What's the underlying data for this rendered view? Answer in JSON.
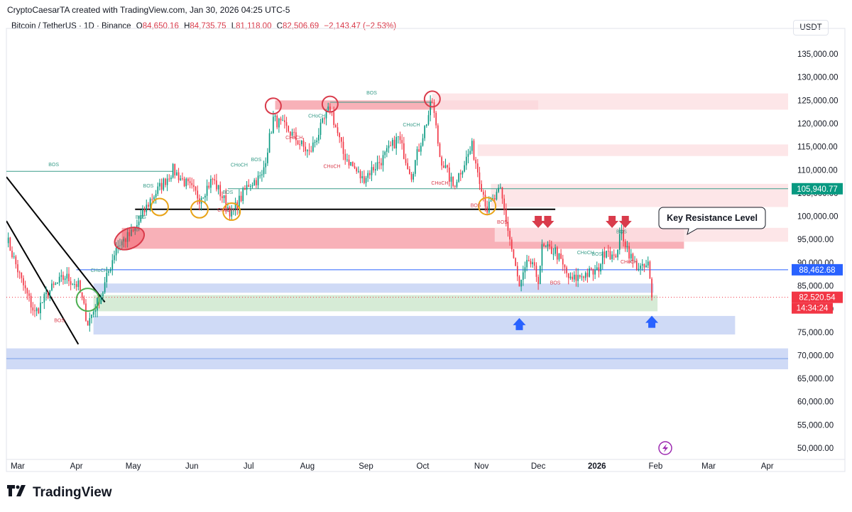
{
  "header": {
    "published": "CryptoCaesarTA created with TradingView.com, Jan 30, 2026 04:25 UTC-5",
    "symbol": "Bitcoin / TetherUS · 1D · Binance",
    "o_label": "O",
    "o_value": "84,650.16",
    "h_label": "H",
    "h_value": "84,735.75",
    "l_label": "L",
    "l_value": "81,118.00",
    "c_label": "C",
    "c_value": "82,506.69",
    "change": "−2,143.47 (−2.53%)"
  },
  "currency_button": "USDT",
  "brand": "TradingView",
  "chart_data": {
    "type": "candlestick",
    "symbol": "BTC/USDT",
    "interval": "1D",
    "ylim": [
      48000,
      139000
    ],
    "y_ticks": [
      50000,
      55000,
      60000,
      65000,
      70000,
      75000,
      80000,
      85000,
      90000,
      95000,
      100000,
      105000,
      110000,
      115000,
      120000,
      125000,
      130000,
      135000
    ],
    "y_tick_labels": [
      "50,000.00",
      "55,000.00",
      "60,000.00",
      "65,000.00",
      "70,000.00",
      "75,000.00",
      "80,000.00",
      "85,000.00",
      "90,000.00",
      "95,000.00",
      "100,000.00",
      "105,000.00",
      "110,000.00",
      "115,000.00",
      "120,000.00",
      "125,000.00",
      "130,000.00",
      "135,000.00"
    ],
    "x_start": "2025-02-23",
    "x_end": "2026-04-12",
    "x_ticks": [
      {
        "label": "Mar",
        "date": "2025-03-01"
      },
      {
        "label": "Apr",
        "date": "2025-04-01"
      },
      {
        "label": "May",
        "date": "2025-05-01"
      },
      {
        "label": "Jun",
        "date": "2025-06-01"
      },
      {
        "label": "Jul",
        "date": "2025-07-01"
      },
      {
        "label": "Aug",
        "date": "2025-08-01"
      },
      {
        "label": "Sep",
        "date": "2025-09-01"
      },
      {
        "label": "Oct",
        "date": "2025-10-01"
      },
      {
        "label": "Nov",
        "date": "2025-11-01"
      },
      {
        "label": "Dec",
        "date": "2025-12-01"
      },
      {
        "label": "2026",
        "date": "2026-01-01",
        "bold": true
      },
      {
        "label": "Feb",
        "date": "2026-02-01"
      },
      {
        "label": "Mar",
        "date": "2026-03-01"
      },
      {
        "label": "Apr",
        "date": "2026-04-01"
      }
    ],
    "price_anchors": [
      [
        "2025-02-23",
        95500
      ],
      [
        "2025-03-03",
        86000
      ],
      [
        "2025-03-10",
        79000
      ],
      [
        "2025-03-18",
        84000
      ],
      [
        "2025-03-26",
        87000
      ],
      [
        "2025-04-02",
        85000
      ],
      [
        "2025-04-07",
        77000
      ],
      [
        "2025-04-15",
        84000
      ],
      [
        "2025-04-22",
        93500
      ],
      [
        "2025-05-01",
        96500
      ],
      [
        "2025-05-10",
        103500
      ],
      [
        "2025-05-22",
        110000
      ],
      [
        "2025-06-05",
        104000
      ],
      [
        "2025-06-12",
        108000
      ],
      [
        "2025-06-22",
        100500
      ],
      [
        "2025-07-01",
        107000
      ],
      [
        "2025-07-08",
        108500
      ],
      [
        "2025-07-14",
        121000
      ],
      [
        "2025-07-22",
        118500
      ],
      [
        "2025-08-02",
        113500
      ],
      [
        "2025-08-13",
        123500
      ],
      [
        "2025-08-20",
        113500
      ],
      [
        "2025-08-30",
        108000
      ],
      [
        "2025-09-10",
        112500
      ],
      [
        "2025-09-18",
        117000
      ],
      [
        "2025-09-25",
        109000
      ],
      [
        "2025-10-06",
        124800
      ],
      [
        "2025-10-10",
        113000
      ],
      [
        "2025-10-17",
        106500
      ],
      [
        "2025-10-27",
        115000
      ],
      [
        "2025-11-04",
        101500
      ],
      [
        "2025-11-11",
        105500
      ],
      [
        "2025-11-21",
        84500
      ],
      [
        "2025-11-26",
        90500
      ],
      [
        "2025-12-01",
        86500
      ],
      [
        "2025-12-03",
        93000
      ],
      [
        "2025-12-10",
        92500
      ],
      [
        "2025-12-18",
        86000
      ],
      [
        "2025-12-25",
        87500
      ],
      [
        "2026-01-01",
        88000
      ],
      [
        "2026-01-06",
        93500
      ],
      [
        "2026-01-10",
        90500
      ],
      [
        "2026-01-14",
        96500
      ],
      [
        "2026-01-20",
        90000
      ],
      [
        "2026-01-25",
        88500
      ],
      [
        "2026-01-28",
        89500
      ],
      [
        "2026-01-30",
        82506
      ]
    ],
    "zones": [
      {
        "name": "top-supply-zone",
        "from": "2025-07-15",
        "to": "2025-12-01",
        "low": 123000,
        "high": 125000,
        "color": "#f7a3ab"
      },
      {
        "name": "top-supply-extension",
        "from": "2025-10-06",
        "to": "2026-04-12",
        "low": 123000,
        "high": 126500,
        "color": "#fde2e4"
      },
      {
        "name": "supply-zone-115k",
        "from": "2025-10-30",
        "to": "2026-04-12",
        "low": 113000,
        "high": 115500,
        "color": "#fde2e4"
      },
      {
        "name": "supply-zone-105k",
        "from": "2025-11-06",
        "to": "2026-04-12",
        "low": 102000,
        "high": 107000,
        "color": "#fde2e4"
      },
      {
        "name": "key-resistance-zone",
        "from": "2025-04-25",
        "to": "2026-02-16",
        "low": 93000,
        "high": 97500,
        "color": "#f7a3ab"
      },
      {
        "name": "key-resistance-extension",
        "from": "2025-11-08",
        "to": "2026-04-12",
        "low": 94500,
        "high": 97500,
        "color": "#fde2e4"
      },
      {
        "name": "blue-demand-zone-upper",
        "from": "2025-04-10",
        "to": "2026-01-31",
        "low": 83500,
        "high": 85500,
        "color": "#c7d4f5"
      },
      {
        "name": "green-demand-zone",
        "from": "2025-04-10",
        "to": "2026-02-02",
        "low": 79500,
        "high": 83000,
        "color": "#cfe8cf"
      },
      {
        "name": "blue-demand-zone-lower",
        "from": "2025-04-10",
        "to": "2026-03-15",
        "low": 74500,
        "high": 78500,
        "color": "#c7d4f5"
      },
      {
        "name": "blue-demand-zone-70k",
        "from": "2025-02-23",
        "to": "2026-04-12",
        "low": 67000,
        "high": 71500,
        "color": "#c7d4f5"
      }
    ],
    "lines": [
      {
        "name": "support-line-101k",
        "from": "2025-05-02",
        "to": "2025-12-10",
        "value": 101500,
        "color": "#000000"
      },
      {
        "name": "bos-line-110k",
        "from": "2025-02-23",
        "to": "2025-05-22",
        "value": 109700,
        "color": "#3a9d8a"
      },
      {
        "name": "level-line-105k",
        "from": "2025-06-20",
        "to": "2026-04-12",
        "value": 105940,
        "color": "#3a9d8a"
      },
      {
        "name": "level-line-88k",
        "from": "2025-04-01",
        "to": "2026-04-12",
        "value": 88462,
        "color": "#2962ff"
      },
      {
        "name": "bos-top-line",
        "from": "2025-08-13",
        "to": "2025-10-06",
        "value": 124600,
        "color": "#3a9d8a"
      },
      {
        "name": "level-line-70k",
        "from": "2025-02-23",
        "to": "2026-04-12",
        "value": 69300,
        "color": "#7aa0e8"
      }
    ],
    "price_tags": [
      {
        "value": 105940.77,
        "text": "105,940.77",
        "color": "#089981"
      },
      {
        "value": 88462.68,
        "text": "88,462.68",
        "color": "#2962ff"
      },
      {
        "value": 82520.54,
        "text": "82,520.54",
        "color": "#f23645"
      }
    ],
    "countdown": "14:34:24",
    "structure_labels": [
      {
        "text": "BOS",
        "date": "2025-03-20",
        "value": 110800,
        "color": "#3a9d8a"
      },
      {
        "text": "BOS",
        "date": "2025-09-04",
        "value": 126300,
        "color": "#3a9d8a"
      },
      {
        "text": "BOS",
        "date": "2025-05-09",
        "value": 106200,
        "color": "#3a9d8a"
      },
      {
        "text": "BOS",
        "date": "2025-05-05",
        "value": 99500,
        "color": "#3a9d8a"
      },
      {
        "text": "BOS",
        "date": "2025-06-20",
        "value": 104800,
        "color": "#3a9d8a"
      },
      {
        "text": "CHoCH",
        "date": "2025-06-26",
        "value": 110700,
        "color": "#3a9d8a"
      },
      {
        "text": "BOS",
        "date": "2025-07-05",
        "value": 111900,
        "color": "#3a9d8a"
      },
      {
        "text": "CHoCH",
        "date": "2025-08-06",
        "value": 121300,
        "color": "#3a9d8a"
      },
      {
        "text": "CHoCH",
        "date": "2025-09-25",
        "value": 119400,
        "color": "#3a9d8a"
      },
      {
        "text": "CHoCH",
        "date": "2025-04-13",
        "value": 88000,
        "color": "#3a9d8a"
      },
      {
        "text": "BOS",
        "date": "2026-01-14",
        "value": 96300,
        "color": "#3a9d8a"
      },
      {
        "text": "BOS",
        "date": "2026-01-01",
        "value": 91500,
        "color": "#3a9d8a"
      },
      {
        "text": "CHoCH",
        "date": "2025-12-26",
        "value": 91800,
        "color": "#3a9d8a"
      },
      {
        "text": "CHoCH",
        "date": "2025-07-25",
        "value": 116600,
        "color": "#d93b4b"
      },
      {
        "text": "CHoCH",
        "date": "2025-08-14",
        "value": 110400,
        "color": "#d93b4b"
      },
      {
        "text": "CHoCH",
        "date": "2025-10-10",
        "value": 106800,
        "color": "#d93b4b"
      },
      {
        "text": "CHoCH",
        "date": "2025-06-19",
        "value": 101000,
        "color": "#d93b4b"
      },
      {
        "text": "CHoCH",
        "date": "2026-01-18",
        "value": 89800,
        "color": "#d93b4b"
      },
      {
        "text": "BOS",
        "date": "2025-11-12",
        "value": 98400,
        "color": "#d93b4b"
      },
      {
        "text": "BOS",
        "date": "2025-12-10",
        "value": 85300,
        "color": "#d93b4b"
      },
      {
        "text": "BOS",
        "date": "2025-03-23",
        "value": 77200,
        "color": "#d93b4b"
      },
      {
        "text": "BOS",
        "date": "2025-10-29",
        "value": 102000,
        "color": "#d93b4b"
      }
    ],
    "annotations": {
      "callout": "Key Resistance Level",
      "down_arrows": [
        "2025-12-01",
        "2025-12-06",
        "2026-01-09",
        "2026-01-16"
      ],
      "up_arrows": [
        "2025-11-21",
        "2026-01-30"
      ]
    }
  }
}
